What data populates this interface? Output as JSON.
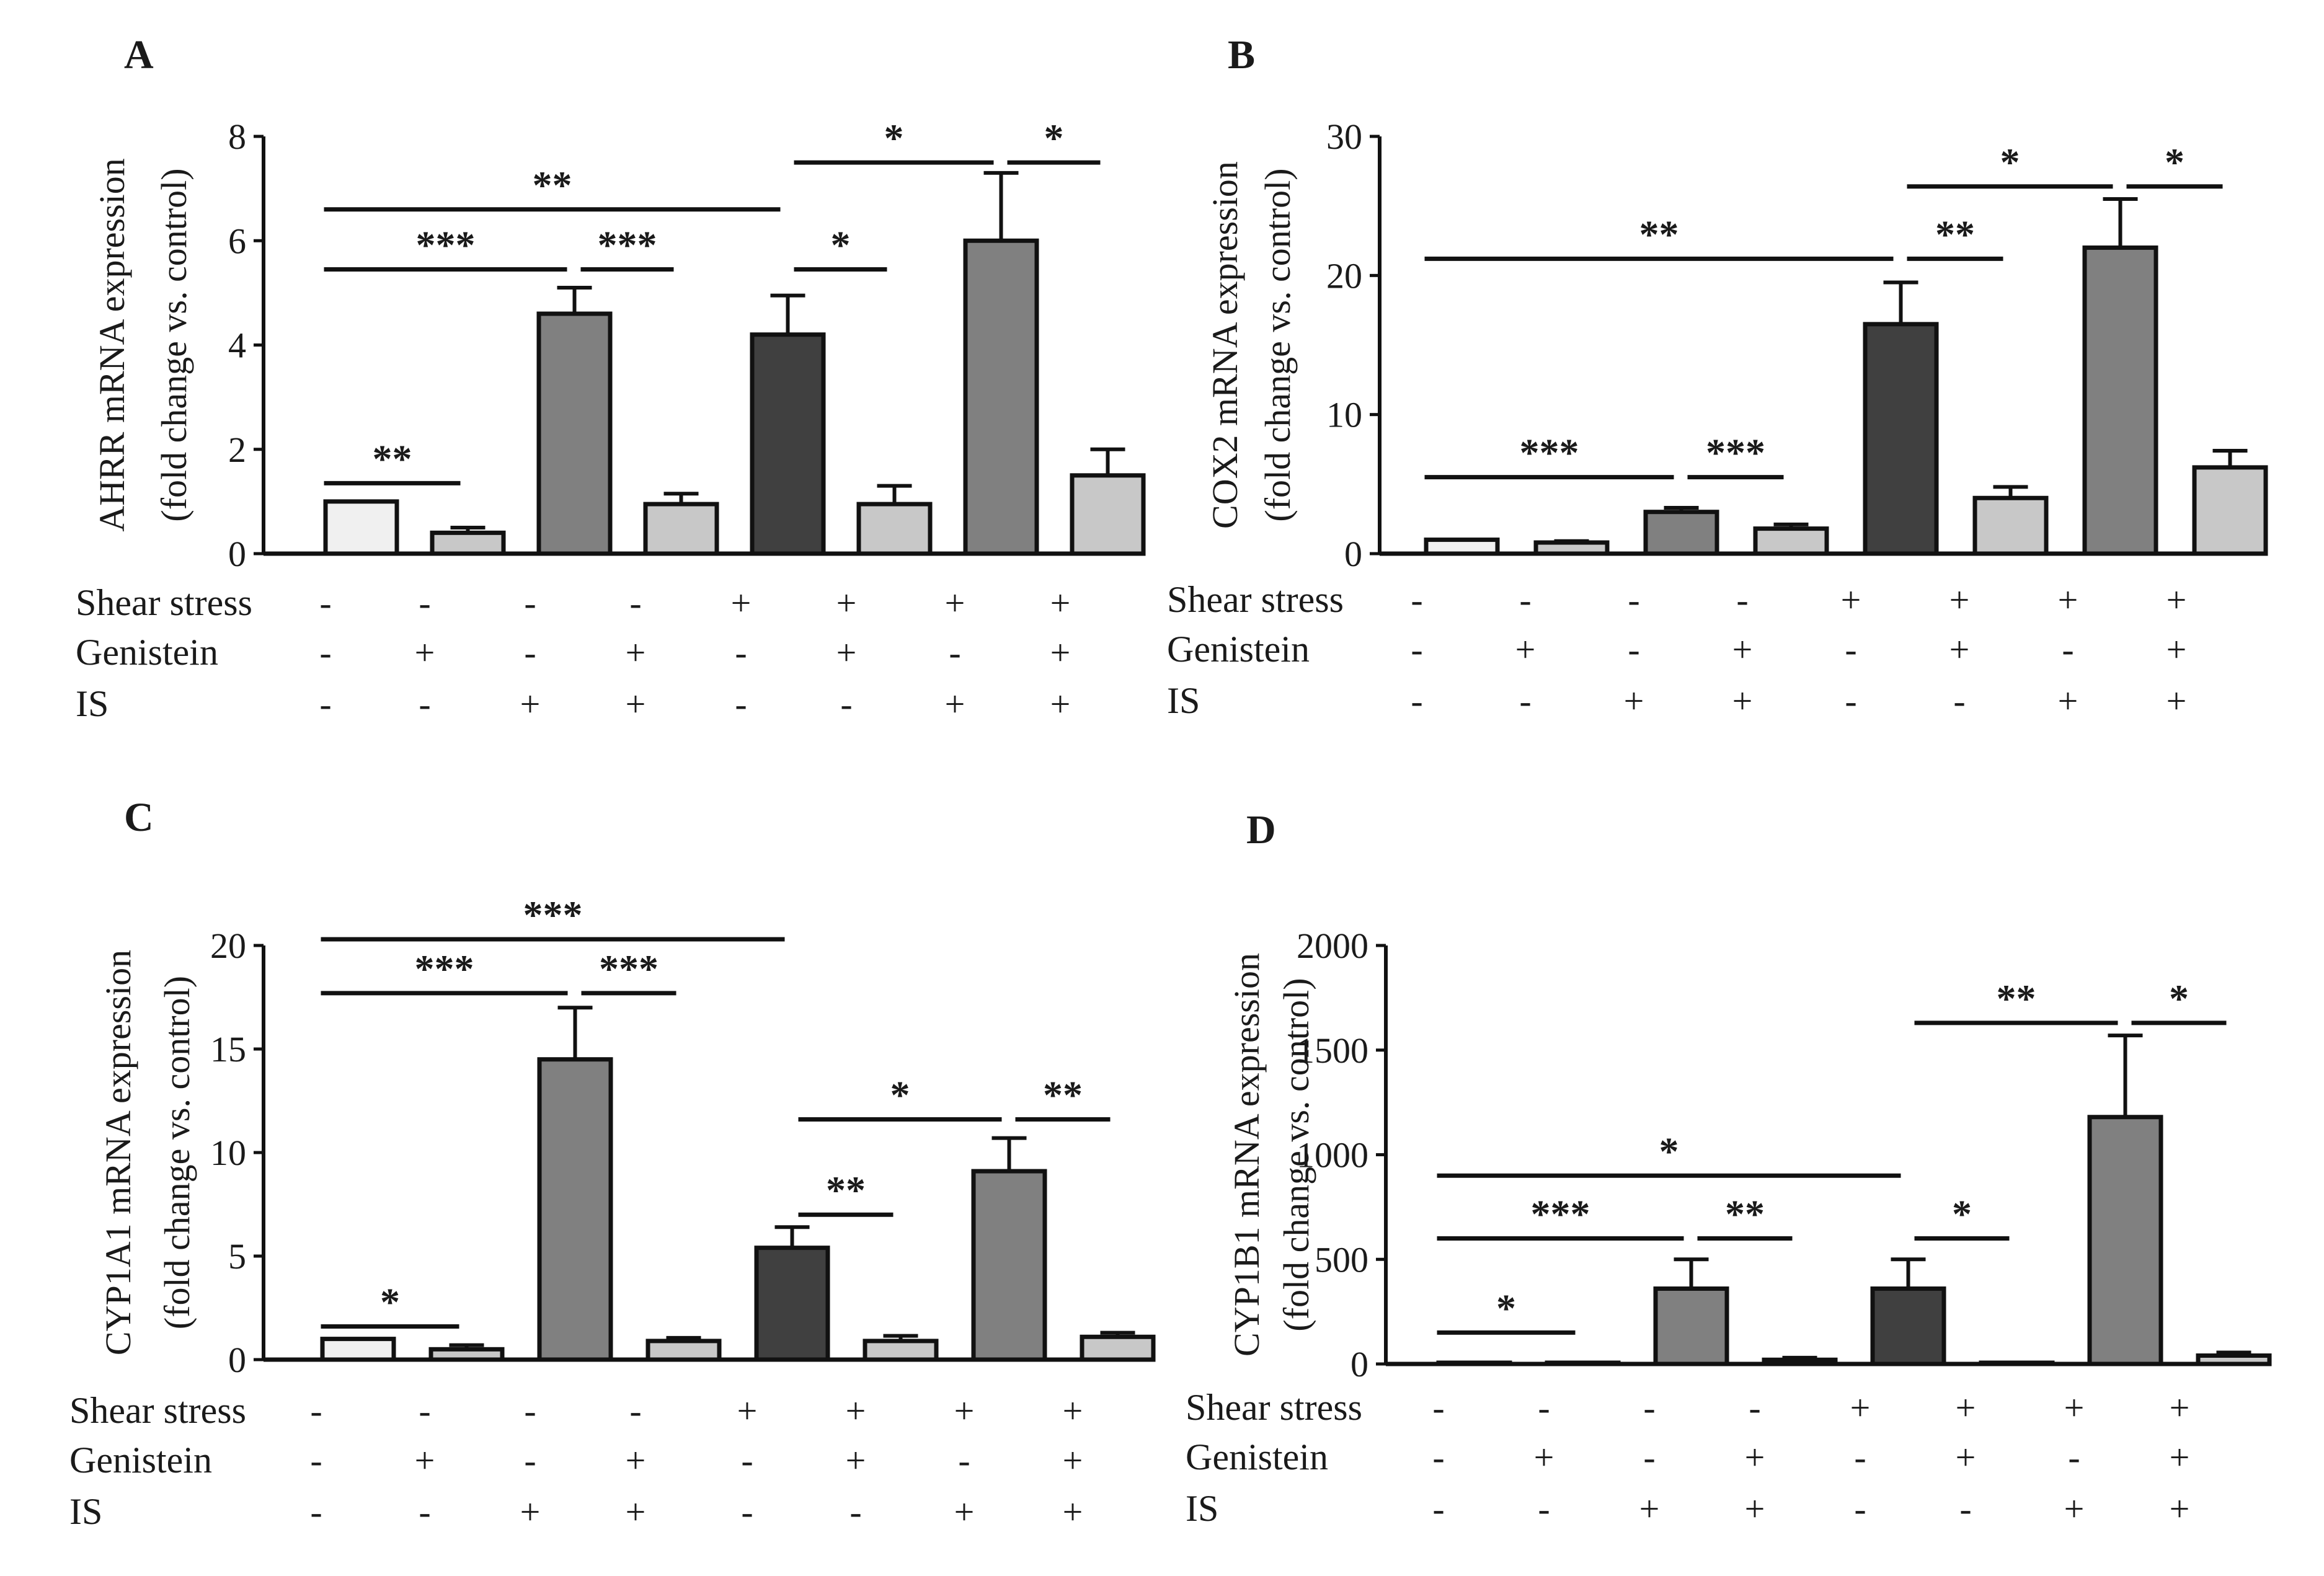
{
  "conditions": {
    "labels": [
      "Shear stress",
      "Genistein",
      "IS"
    ],
    "shear_stress": [
      "-",
      "-",
      "-",
      "-",
      "+",
      "+",
      "+",
      "+"
    ],
    "genistein": [
      "-",
      "+",
      "-",
      "+",
      "-",
      "+",
      "-",
      "+"
    ],
    "is": [
      "-",
      "-",
      "+",
      "+",
      "-",
      "-",
      "+",
      "+"
    ]
  },
  "colors": {
    "groups": [
      "#f0f0f0",
      "#c8c8c8",
      "#808080",
      "#c8c8c8",
      "#404040",
      "#c8c8c8",
      "#808080",
      "#c8c8c8"
    ],
    "line": "#111111"
  },
  "chart_data": [
    {
      "panel": "A",
      "type": "bar",
      "ylabel": "AHRR mRNA expression",
      "ylabel2": "(fold change vs. control)",
      "ylim": [
        0,
        8
      ],
      "yticks": [
        0,
        2,
        4,
        6,
        8
      ],
      "values": [
        1.0,
        0.4,
        4.6,
        0.95,
        4.2,
        0.95,
        6.0,
        1.5
      ],
      "errors": [
        0,
        0.1,
        0.5,
        0.2,
        0.75,
        0.35,
        1.3,
        0.5
      ],
      "significance": [
        {
          "from": 0,
          "to": 1,
          "y": 1.35,
          "label": "**"
        },
        {
          "from": 0,
          "to": 2,
          "y": 5.45,
          "label": "***"
        },
        {
          "from": 2,
          "to": 3,
          "y": 5.45,
          "label": "***"
        },
        {
          "from": 0,
          "to": 4,
          "y": 6.6,
          "label": "**"
        },
        {
          "from": 4,
          "to": 5,
          "y": 5.45,
          "label": "*"
        },
        {
          "from": 4,
          "to": 6,
          "y": 7.5,
          "label": "*"
        },
        {
          "from": 6,
          "to": 7,
          "y": 7.5,
          "label": "*"
        }
      ]
    },
    {
      "panel": "B",
      "type": "bar",
      "ylabel": "COX2 mRNA expression",
      "ylabel2": "(fold change vs. control)",
      "ylim": [
        0,
        30
      ],
      "yticks": [
        0,
        10,
        20,
        30
      ],
      "values": [
        1.0,
        0.8,
        3.0,
        1.8,
        16.5,
        4.0,
        22.0,
        6.2
      ],
      "errors": [
        0,
        0.1,
        0.3,
        0.3,
        3.0,
        0.8,
        3.5,
        1.2
      ],
      "significance": [
        {
          "from": 0,
          "to": 2,
          "y": 5.5,
          "label": "***"
        },
        {
          "from": 2,
          "to": 3,
          "y": 5.5,
          "label": "***"
        },
        {
          "from": 0,
          "to": 4,
          "y": 21.2,
          "label": "**"
        },
        {
          "from": 4,
          "to": 5,
          "y": 21.2,
          "label": "**"
        },
        {
          "from": 4,
          "to": 6,
          "y": 26.4,
          "label": "*"
        },
        {
          "from": 6,
          "to": 7,
          "y": 26.4,
          "label": "*"
        }
      ]
    },
    {
      "panel": "C",
      "type": "bar",
      "ylabel": "CYP1A1 mRNA expression",
      "ylabel2": "(fold change vs. control)",
      "ylim": [
        0,
        20
      ],
      "yticks": [
        0,
        5,
        10,
        15,
        20
      ],
      "values": [
        1.0,
        0.5,
        14.5,
        0.9,
        5.4,
        0.9,
        9.1,
        1.1
      ],
      "errors": [
        0,
        0.2,
        2.5,
        0.15,
        1.0,
        0.25,
        1.6,
        0.2
      ],
      "significance": [
        {
          "from": 0,
          "to": 1,
          "y": 1.6,
          "label": "*"
        },
        {
          "from": 0,
          "to": 2,
          "y": 17.7,
          "label": "***"
        },
        {
          "from": 2,
          "to": 3,
          "y": 17.7,
          "label": "***"
        },
        {
          "from": 0,
          "to": 4,
          "y": 20.3,
          "label": "***"
        },
        {
          "from": 4,
          "to": 5,
          "y": 7.0,
          "label": "**"
        },
        {
          "from": 4,
          "to": 6,
          "y": 11.6,
          "label": "*"
        },
        {
          "from": 6,
          "to": 7,
          "y": 11.6,
          "label": "**"
        }
      ]
    },
    {
      "panel": "D",
      "type": "bar",
      "ylabel": "CYP1B1 mRNA expression",
      "ylabel2": "(fold change vs. control)",
      "ylim": [
        0,
        2000
      ],
      "yticks": [
        0,
        500,
        1000,
        1500,
        2000
      ],
      "values": [
        1,
        1,
        360,
        20,
        360,
        1,
        1180,
        40
      ],
      "errors": [
        0,
        0,
        140,
        10,
        140,
        0,
        390,
        15
      ],
      "significance": [
        {
          "from": 0,
          "to": 1,
          "y": 150,
          "label": "*"
        },
        {
          "from": 0,
          "to": 2,
          "y": 600,
          "label": "***"
        },
        {
          "from": 2,
          "to": 3,
          "y": 600,
          "label": "**"
        },
        {
          "from": 0,
          "to": 4,
          "y": 900,
          "label": "*"
        },
        {
          "from": 4,
          "to": 5,
          "y": 600,
          "label": "*"
        },
        {
          "from": 4,
          "to": 6,
          "y": 1630,
          "label": "**"
        },
        {
          "from": 6,
          "to": 7,
          "y": 1630,
          "label": "*"
        }
      ]
    }
  ]
}
